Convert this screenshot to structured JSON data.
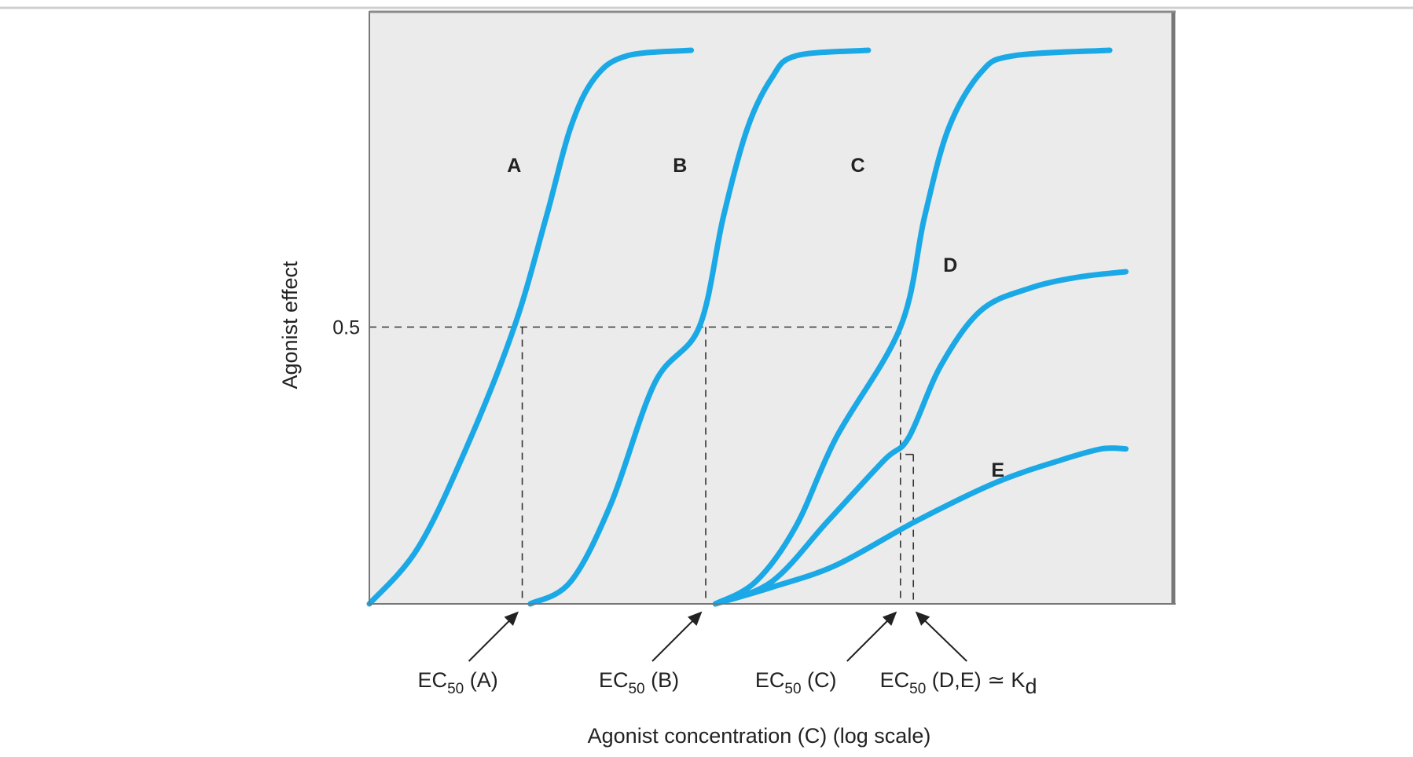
{
  "chart_data": {
    "type": "line",
    "title": "",
    "xlabel": "Agonist concentration (C) (log scale)",
    "ylabel": "Agonist effect",
    "x_scale": "log",
    "ylim": [
      0,
      1
    ],
    "y_ticks": [
      {
        "value": 0.5,
        "label": "0.5"
      }
    ],
    "grid": false,
    "legend": "none",
    "series": [
      {
        "name": "A",
        "color": "#1aa9e6",
        "points": [
          [
            0.0,
            0.0
          ],
          [
            0.06,
            0.1
          ],
          [
            0.12,
            0.28
          ],
          [
            0.18,
            0.5
          ],
          [
            0.22,
            0.7
          ],
          [
            0.25,
            0.86
          ],
          [
            0.28,
            0.95
          ],
          [
            0.32,
            0.99
          ],
          [
            0.4,
            1.0
          ]
        ]
      },
      {
        "name": "B",
        "color": "#1aa9e6",
        "points": [
          [
            0.2,
            0.0
          ],
          [
            0.25,
            0.04
          ],
          [
            0.3,
            0.18
          ],
          [
            0.355,
            0.4
          ],
          [
            0.41,
            0.5
          ],
          [
            0.44,
            0.7
          ],
          [
            0.47,
            0.86
          ],
          [
            0.5,
            0.95
          ],
          [
            0.53,
            0.99
          ],
          [
            0.62,
            1.0
          ]
        ]
      },
      {
        "name": "C",
        "color": "#1aa9e6",
        "points": [
          [
            0.43,
            0.0
          ],
          [
            0.48,
            0.04
          ],
          [
            0.53,
            0.14
          ],
          [
            0.58,
            0.3
          ],
          [
            0.66,
            0.5
          ],
          [
            0.69,
            0.7
          ],
          [
            0.72,
            0.86
          ],
          [
            0.76,
            0.96
          ],
          [
            0.8,
            0.99
          ],
          [
            0.92,
            1.0
          ]
        ]
      },
      {
        "name": "D",
        "color": "#1aa9e6",
        "points": [
          [
            0.43,
            0.0
          ],
          [
            0.5,
            0.04
          ],
          [
            0.57,
            0.15
          ],
          [
            0.64,
            0.26
          ],
          [
            0.67,
            0.3
          ],
          [
            0.71,
            0.43
          ],
          [
            0.76,
            0.53
          ],
          [
            0.82,
            0.57
          ],
          [
            0.88,
            0.59
          ],
          [
            0.94,
            0.6
          ]
        ]
      },
      {
        "name": "E",
        "color": "#1aa9e6",
        "points": [
          [
            0.43,
            0.0
          ],
          [
            0.5,
            0.03
          ],
          [
            0.58,
            0.07
          ],
          [
            0.68,
            0.15
          ],
          [
            0.78,
            0.22
          ],
          [
            0.86,
            0.26
          ],
          [
            0.91,
            0.28
          ],
          [
            0.94,
            0.28
          ]
        ]
      }
    ],
    "dashed_guides": [
      {
        "y": 0.5,
        "x_end": 0.66
      },
      {
        "x": 0.19,
        "y_top": 0.5
      },
      {
        "x": 0.418,
        "y_top": 0.5
      },
      {
        "x": 0.66,
        "y_top": 0.5
      },
      {
        "x": 0.676,
        "y_top": 0.27
      }
    ],
    "annotations": [
      {
        "id": "ec50-a",
        "main": "EC",
        "sub": "50",
        "after": " (A)",
        "points_to": 0.19
      },
      {
        "id": "ec50-b",
        "main": "EC",
        "sub": "50",
        "after": " (B)",
        "points_to": 0.418
      },
      {
        "id": "ec50-c",
        "main": "EC",
        "sub": "50",
        "after": " (C)",
        "points_to": 0.66
      },
      {
        "id": "ec50-de",
        "main": "EC",
        "sub": "50",
        "after": " (D,E) ≃ K",
        "tail_sub": "d",
        "points_to": 0.676
      }
    ],
    "colors": {
      "plot_background": "#ebebeb",
      "curve": "#1aa9e6",
      "frame": "#777777"
    }
  }
}
